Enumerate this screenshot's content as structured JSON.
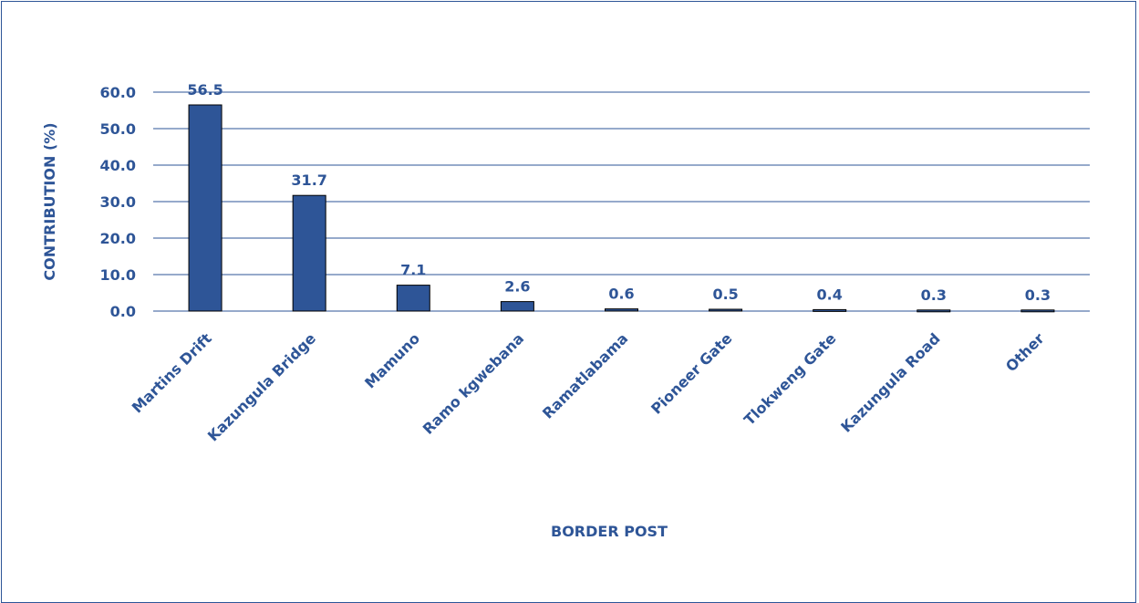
{
  "chart_data": {
    "type": "bar",
    "categories": [
      "Martins Drift",
      "Kazungula Bridge",
      "Mamuno",
      "Ramokgwebana",
      "Ramatlabama",
      "Pioneer Gate",
      "Tlokweng Gate",
      "Kazungula Road",
      "Other"
    ],
    "category_labels": [
      "Martins Drift",
      "Kazungula Bridge",
      "Mamuno",
      "Ramo kgwebana",
      "Ramatlabama",
      "Pioneer Gate",
      "Tlokweng Gate",
      "Kazungula Road",
      "Other"
    ],
    "values": [
      56.5,
      31.7,
      7.1,
      2.6,
      0.6,
      0.5,
      0.4,
      0.3,
      0.3
    ],
    "data_labels": [
      "56.5",
      "31.7",
      "7.1",
      "2.6",
      "0.6",
      "0.5",
      "0.4",
      "0.3",
      "0.3"
    ],
    "xlabel": "BORDER POST",
    "ylabel": "CONTRIBUTION (%)",
    "ylim": [
      0,
      60
    ],
    "yticks": [
      "0.0",
      "10.0",
      "20.0",
      "30.0",
      "40.0",
      "50.0",
      "60.0"
    ],
    "grid": true,
    "legend": "none",
    "colors": {
      "bar": "#2e5597",
      "bar_stroke": "#000000",
      "grid": "#2e5597",
      "text": "#2e5597"
    }
  }
}
